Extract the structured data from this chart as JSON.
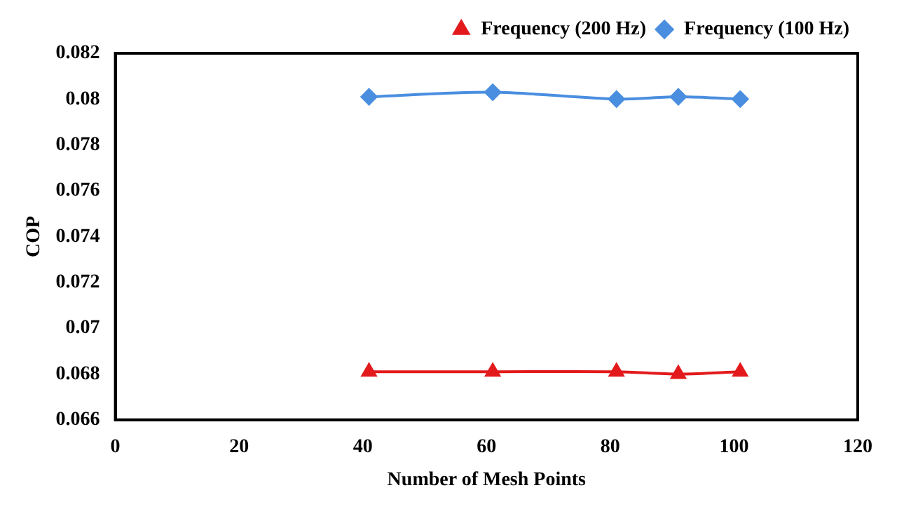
{
  "chart_data": {
    "type": "line",
    "xlabel": "Number of Mesh Points",
    "ylabel": "COP",
    "x": [
      41,
      61,
      81,
      91,
      101
    ],
    "series": [
      {
        "name": "Frequency (200 Hz)",
        "color": "#e31a1c",
        "marker": "triangle",
        "values": [
          0.0681,
          0.0681,
          0.0681,
          0.068,
          0.0681
        ]
      },
      {
        "name": "Frequency (100 Hz)",
        "color": "#4a8ee0",
        "marker": "diamond",
        "values": [
          0.0801,
          0.0803,
          0.08,
          0.0801,
          0.08
        ]
      }
    ],
    "xlim": [
      0,
      120
    ],
    "xticks": [
      0,
      20,
      40,
      60,
      80,
      100,
      120
    ],
    "ylim": [
      0.066,
      0.082
    ],
    "yticks": [
      0.066,
      0.068,
      0.07,
      0.072,
      0.074,
      0.076,
      0.078,
      0.08,
      0.082
    ],
    "grid": false,
    "legend": "top right",
    "line_style": "solid"
  }
}
